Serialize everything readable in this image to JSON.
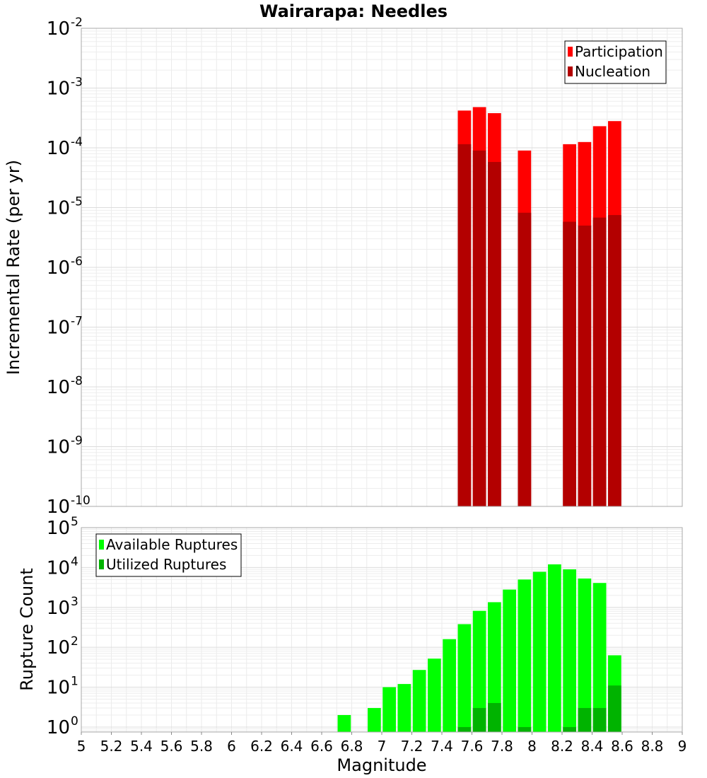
{
  "chart_data": [
    {
      "type": "bar",
      "title": "Wairarapa: Needles",
      "xlabel": "",
      "ylabel": "Incremental Rate (per yr)",
      "yscale": "log",
      "xlim": [
        5,
        9
      ],
      "ylim": [
        1e-10,
        0.01
      ],
      "yticks": [
        {
          "base": "10",
          "exp": "-10"
        },
        {
          "base": "10",
          "exp": "-9"
        },
        {
          "base": "10",
          "exp": "-8"
        },
        {
          "base": "10",
          "exp": "-7"
        },
        {
          "base": "10",
          "exp": "-6"
        },
        {
          "base": "10",
          "exp": "-5"
        },
        {
          "base": "10",
          "exp": "-4"
        },
        {
          "base": "10",
          "exp": "-3"
        },
        {
          "base": "10",
          "exp": "-2"
        }
      ],
      "grid": true,
      "legend_position": "top-right",
      "x": [
        7.55,
        7.65,
        7.75,
        7.95,
        8.25,
        8.35,
        8.45,
        8.55
      ],
      "series": [
        {
          "name": "Participation",
          "color": "#ff0000",
          "values": [
            0.00042,
            0.00048,
            0.00038,
            9e-05,
            0.000115,
            0.000125,
            0.00023,
            0.00028
          ]
        },
        {
          "name": "Nucleation",
          "color": "#b30000",
          "values": [
            0.000115,
            9e-05,
            5.8e-05,
            8.2e-06,
            5.8e-06,
            5e-06,
            6.8e-06,
            7.5e-06
          ]
        }
      ]
    },
    {
      "type": "bar",
      "title": "",
      "xlabel": "Magnitude",
      "ylabel": "Rupture Count",
      "yscale": "log",
      "xlim": [
        5,
        9
      ],
      "ylim": [
        0.75,
        100000
      ],
      "yticks": [
        {
          "base": "10",
          "exp": "0"
        },
        {
          "base": "10",
          "exp": "1"
        },
        {
          "base": "10",
          "exp": "2"
        },
        {
          "base": "10",
          "exp": "3"
        },
        {
          "base": "10",
          "exp": "4"
        },
        {
          "base": "10",
          "exp": "5"
        }
      ],
      "xticks": [
        "5",
        "5.2",
        "5.4",
        "5.6",
        "5.8",
        "6",
        "6.2",
        "6.4",
        "6.6",
        "6.8",
        "7",
        "7.2",
        "7.4",
        "7.6",
        "7.8",
        "8",
        "8.2",
        "8.4",
        "8.6",
        "8.8",
        "9"
      ],
      "grid": true,
      "legend_position": "top-left",
      "x": [
        6.75,
        6.95,
        7.05,
        7.15,
        7.25,
        7.35,
        7.45,
        7.55,
        7.65,
        7.75,
        7.85,
        7.95,
        8.05,
        8.15,
        8.25,
        8.35,
        8.45,
        8.55
      ],
      "series": [
        {
          "name": "Available Ruptures",
          "color": "#00ff00",
          "values": [
            2,
            3,
            10,
            12,
            27,
            52,
            160,
            380,
            820,
            1350,
            2800,
            5000,
            7800,
            12000,
            9000,
            5300,
            4100,
            63
          ]
        },
        {
          "name": "Utilized Ruptures",
          "color": "#00b300",
          "values": [
            0,
            0,
            0,
            0,
            0,
            0,
            0,
            1,
            3,
            4,
            0,
            1,
            0,
            0,
            1,
            3,
            3,
            11
          ]
        }
      ]
    }
  ]
}
